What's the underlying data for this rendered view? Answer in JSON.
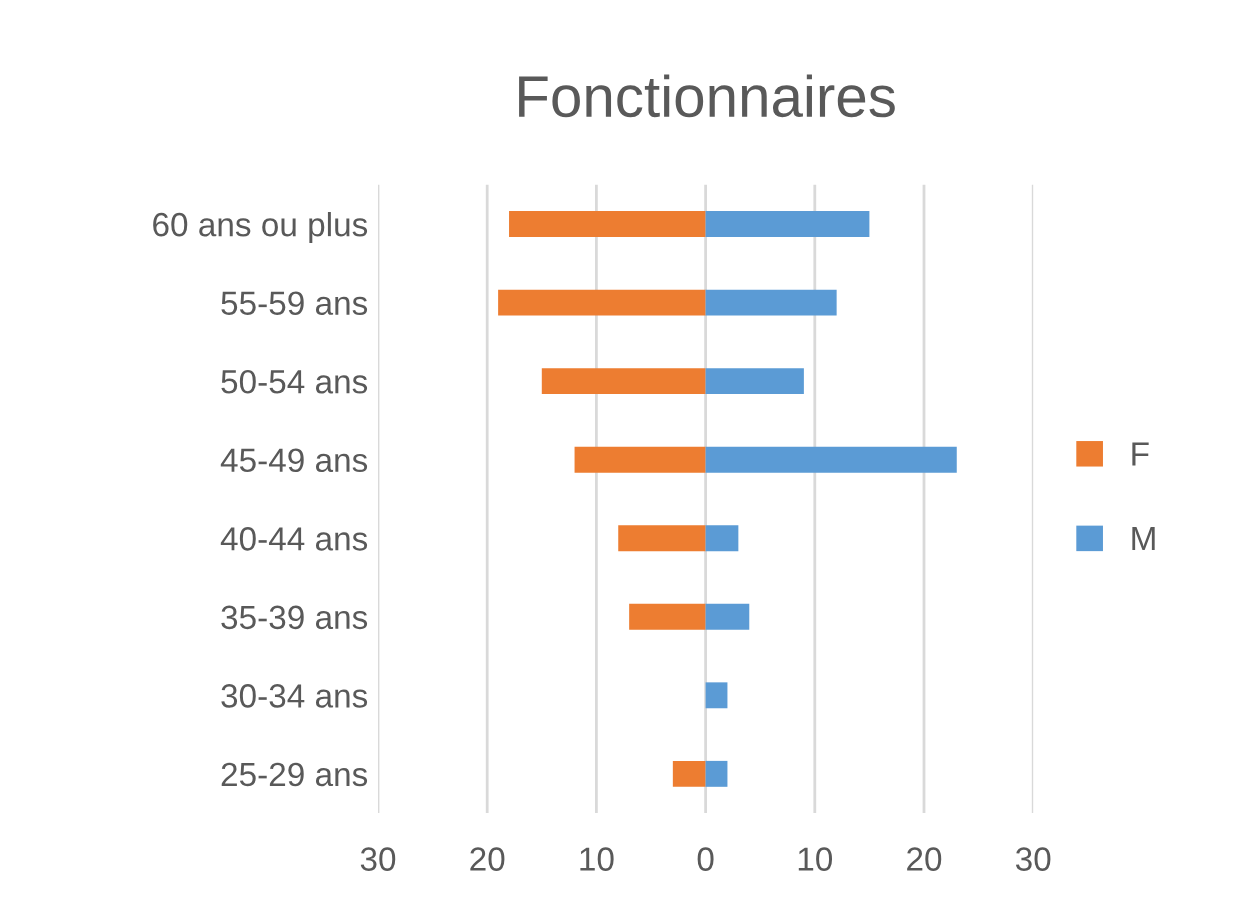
{
  "chart_data": {
    "type": "bar",
    "orientation": "horizontal",
    "title": "Fonctionnaires",
    "categories": [
      "60 ans ou plus",
      "55-59 ans",
      "50-54 ans",
      "45-49 ans",
      "40-44 ans",
      "35-39 ans",
      "30-34 ans",
      "25-29 ans"
    ],
    "series": [
      {
        "name": "F",
        "color": "#ed7d31",
        "values": [
          -18,
          -19,
          -15,
          -12,
          -8,
          -7,
          0,
          -3
        ]
      },
      {
        "name": "M",
        "color": "#5b9bd5",
        "values": [
          15,
          12,
          9,
          23,
          3,
          4,
          2,
          2
        ]
      }
    ],
    "xlim": [
      -30,
      30
    ],
    "xticks": [
      {
        "value": -30,
        "label": "30"
      },
      {
        "value": -20,
        "label": "20"
      },
      {
        "value": -10,
        "label": "10"
      },
      0,
      10,
      20,
      30
    ],
    "stacked": true,
    "grid": "x",
    "legend": "right"
  }
}
